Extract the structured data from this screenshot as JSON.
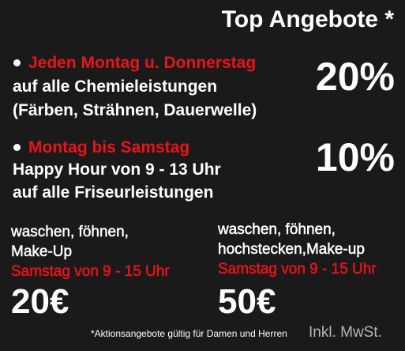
{
  "header": {
    "title": "Top Angebote *"
  },
  "offers": [
    {
      "headline": "Jeden Montag u. Donnerstag",
      "lines": [
        "auf alle Chemieleistungen",
        "(Färben, Strähnen, Dauerwelle)"
      ],
      "discount": "20%"
    },
    {
      "headline": "Montag bis Samstag",
      "lines": [
        "Happy Hour von 9 - 13 Uhr",
        "auf alle Friseurleistungen"
      ],
      "discount": "10%"
    }
  ],
  "packages": [
    {
      "lines": [
        "waschen, föhnen,",
        "Make-Up"
      ],
      "time": "Samstag von 9 - 15 Uhr",
      "price": "20€"
    },
    {
      "lines": [
        "waschen, föhnen,",
        "hochstecken,Make-up"
      ],
      "time": "Samstag von 9 - 15 Uhr",
      "price": "50€"
    }
  ],
  "footer": {
    "note": "*Aktionsangebote gültig für Damen und Herren",
    "tax": "Inkl. MwSt."
  }
}
